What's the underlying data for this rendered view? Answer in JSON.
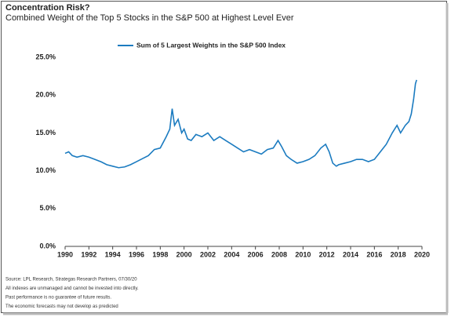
{
  "chart_data": {
    "type": "line",
    "title": "Concentration Risk?",
    "subtitle": "Combined Weight of the Top 5 Stocks in the S&P 500 at Highest Level Ever",
    "series": [
      {
        "name": "Sum of 5 Largest Weights in the S&P 500 Index",
        "color": "#1b7bc0",
        "x": [
          1990,
          1990.3,
          1990.6,
          1991,
          1991.5,
          1992,
          1992.5,
          1993,
          1993.5,
          1994,
          1994.5,
          1995,
          1995.5,
          1996,
          1996.5,
          1997,
          1997.5,
          1998,
          1998.5,
          1998.8,
          1999,
          1999.2,
          1999.5,
          1999.8,
          2000,
          2000.3,
          2000.6,
          2001,
          2001.5,
          2002,
          2002.5,
          2003,
          2003.5,
          2004,
          2004.5,
          2005,
          2005.5,
          2006,
          2006.5,
          2007,
          2007.5,
          2007.9,
          2008.2,
          2008.6,
          2009,
          2009.5,
          2010,
          2010.5,
          2011,
          2011.5,
          2011.9,
          2012.2,
          2012.5,
          2012.8,
          2013,
          2013.5,
          2014,
          2014.5,
          2015,
          2015.5,
          2016,
          2016.5,
          2017,
          2017.5,
          2017.9,
          2018.2,
          2018.6,
          2018.9,
          2019.1,
          2019.3,
          2019.45,
          2019.55
        ],
        "values": [
          12.3,
          12.5,
          12.0,
          11.8,
          12.0,
          11.8,
          11.5,
          11.2,
          10.8,
          10.6,
          10.4,
          10.5,
          10.8,
          11.2,
          11.6,
          12.0,
          12.8,
          13.0,
          14.5,
          15.5,
          18.2,
          16.0,
          16.8,
          15.0,
          15.5,
          14.2,
          14.0,
          14.8,
          14.5,
          15.0,
          14.0,
          14.5,
          14.0,
          13.5,
          13.0,
          12.5,
          12.8,
          12.5,
          12.2,
          12.8,
          13.0,
          14.0,
          13.2,
          12.0,
          11.5,
          11.0,
          11.2,
          11.5,
          12.0,
          13.0,
          13.5,
          12.5,
          11.0,
          10.6,
          10.8,
          11.0,
          11.2,
          11.5,
          11.5,
          11.2,
          11.5,
          12.5,
          13.5,
          15.0,
          16.0,
          15.0,
          16.0,
          16.5,
          17.5,
          19.5,
          21.5,
          22.0
        ]
      }
    ],
    "xlim": [
      1990,
      2020
    ],
    "xticks": [
      1990,
      1992,
      1994,
      1996,
      1998,
      2000,
      2002,
      2004,
      2006,
      2008,
      2010,
      2012,
      2014,
      2016,
      2018,
      2020
    ],
    "ylim": [
      0,
      25
    ],
    "yticks": [
      {
        "value": 0,
        "label": "0.0%"
      },
      {
        "value": 5,
        "label": "5.0%"
      },
      {
        "value": 10,
        "label": "10.0%"
      },
      {
        "value": 15,
        "label": "15.0%"
      },
      {
        "value": 20,
        "label": "20.0%"
      },
      {
        "value": 25,
        "label": "25.0%"
      }
    ],
    "grid": false,
    "legend": "top",
    "footnotes": [
      "Source: LPL Research, Strategas Research Partners, 07/30/20",
      "All indexes are unmanaged and cannot be invested into directly.",
      "Past performance is no guarantee of future results.",
      "The economic forecasts may not develop as predicted"
    ]
  }
}
